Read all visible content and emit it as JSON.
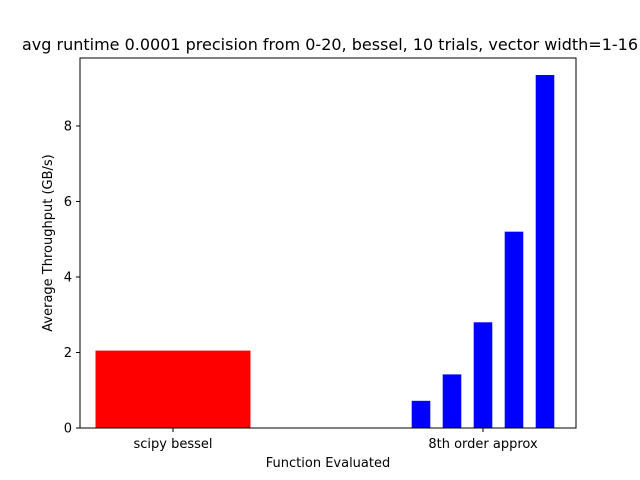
{
  "chart_data": {
    "type": "bar",
    "title": "avg runtime 0.0001 precision from 0-20, bessel, 10 trials, vector width=1-16",
    "xlabel": "Function Evaluated",
    "ylabel": "Average Throughput (GB/s)",
    "ylim": [
      0,
      9.8
    ],
    "yticks": [
      0,
      2,
      4,
      6,
      8
    ],
    "grid": false,
    "categories": [
      "scipy bessel",
      "8th order approx"
    ],
    "series": [
      {
        "color": "#ff0000",
        "bars": [
          {
            "x": 0,
            "width": 1.0,
            "value": 2.05
          }
        ]
      },
      {
        "color": "#0000ff",
        "bars": [
          {
            "x": 1.6,
            "width": 0.12,
            "value": 0.72
          },
          {
            "x": 1.8,
            "width": 0.12,
            "value": 1.42
          },
          {
            "x": 2.0,
            "width": 0.12,
            "value": 2.8
          },
          {
            "x": 2.2,
            "width": 0.12,
            "value": 5.2
          },
          {
            "x": 2.4,
            "width": 0.12,
            "value": 9.35
          }
        ]
      }
    ],
    "xlim": [
      -0.6,
      2.6
    ],
    "category_positions": [
      0,
      2.0
    ]
  }
}
